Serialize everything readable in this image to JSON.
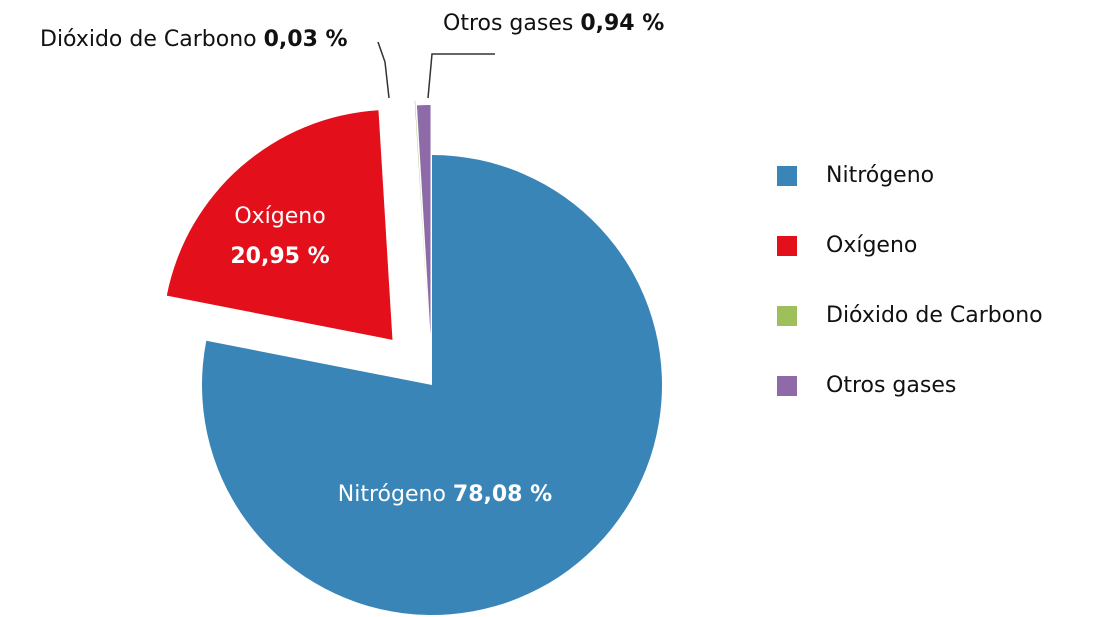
{
  "chart_data": {
    "type": "pie",
    "categories": [
      "Nitrógeno",
      "Oxígeno",
      "Dióxido de Carbono",
      "Otros gases"
    ],
    "values": [
      78.08,
      20.95,
      0.03,
      0.94
    ],
    "value_labels": [
      "78,08 %",
      "20,95 %",
      "0,03 %",
      "0,94 %"
    ],
    "colors": [
      "#3a85b8",
      "#e3101b",
      "#9dc05a",
      "#8f6aa9"
    ],
    "legend": "right"
  }
}
